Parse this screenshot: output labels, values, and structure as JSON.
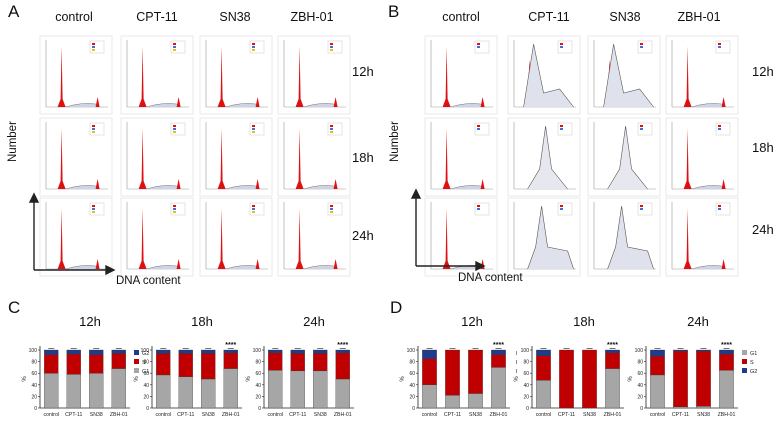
{
  "panels": {
    "A": {
      "label": "A"
    },
    "B": {
      "label": "B"
    },
    "C": {
      "label": "C"
    },
    "D": {
      "label": "D"
    }
  },
  "columns": [
    "control",
    "CPT-11",
    "SN38",
    "ZBH-01"
  ],
  "rows": [
    "12h",
    "18h",
    "24h"
  ],
  "axis": {
    "number": "Number",
    "dna": "DNA content"
  },
  "colors": {
    "g1": "#a6a6a6",
    "s": "#c00000",
    "g2": "#1f3b8a",
    "peak": "#dd1111"
  },
  "chart_data": [
    {
      "type": "bar",
      "stacked": true,
      "panel": "C",
      "title": "12h",
      "categories": [
        "control",
        "CPT-11",
        "SN38",
        "ZBH-01"
      ],
      "ylabel": "%",
      "ylim": [
        0,
        100
      ],
      "yticks": [
        "0",
        "20",
        "40",
        "60",
        "80",
        "100"
      ],
      "series": [
        {
          "name": "G1",
          "values": [
            60,
            58,
            60,
            68
          ]
        },
        {
          "name": "S",
          "values": [
            32,
            35,
            32,
            26
          ]
        },
        {
          "name": "G2",
          "values": [
            8,
            7,
            8,
            6
          ]
        }
      ],
      "legend": [
        "G2",
        "S",
        "G1"
      ],
      "annotation": ""
    },
    {
      "type": "bar",
      "stacked": true,
      "panel": "C",
      "title": "18h",
      "categories": [
        "control",
        "CPT-11",
        "SN38",
        "ZBH-01"
      ],
      "ylabel": "%",
      "ylim": [
        0,
        100
      ],
      "yticks": [
        "0",
        "20",
        "40",
        "60",
        "80",
        "100"
      ],
      "series": [
        {
          "name": "G1",
          "values": [
            57,
            54,
            50,
            68
          ]
        },
        {
          "name": "S",
          "values": [
            37,
            40,
            44,
            27
          ]
        },
        {
          "name": "G2",
          "values": [
            6,
            6,
            6,
            5
          ]
        }
      ],
      "legend": [],
      "annotation": "****"
    },
    {
      "type": "bar",
      "stacked": true,
      "panel": "C",
      "title": "24h",
      "categories": [
        "control",
        "CPT-11",
        "SN38",
        "ZBH-01"
      ],
      "ylabel": "%",
      "ylim": [
        0,
        100
      ],
      "yticks": [
        "0",
        "20",
        "40",
        "60",
        "80",
        "100"
      ],
      "series": [
        {
          "name": "G1",
          "values": [
            65,
            64,
            64,
            50
          ]
        },
        {
          "name": "S",
          "values": [
            30,
            30,
            30,
            45
          ]
        },
        {
          "name": "G2",
          "values": [
            5,
            6,
            6,
            5
          ]
        }
      ],
      "legend": [],
      "annotation": "****"
    },
    {
      "type": "bar",
      "stacked": true,
      "panel": "D",
      "title": "12h",
      "categories": [
        "control",
        "CPT-11",
        "SN38",
        "ZBH-01"
      ],
      "ylabel": "%",
      "ylim": [
        0,
        100
      ],
      "yticks": [
        "0",
        "20",
        "40",
        "60",
        "80",
        "100"
      ],
      "series": [
        {
          "name": "G1",
          "values": [
            40,
            22,
            25,
            70
          ]
        },
        {
          "name": "S",
          "values": [
            45,
            78,
            75,
            22
          ]
        },
        {
          "name": "G2",
          "values": [
            15,
            0,
            0,
            8
          ]
        }
      ],
      "legend": [
        "I",
        "I",
        "I"
      ],
      "annotation": "****"
    },
    {
      "type": "bar",
      "stacked": true,
      "panel": "D",
      "title": "18h",
      "categories": [
        "control",
        "CPT-11",
        "SN38",
        "ZBH-01"
      ],
      "ylabel": "%",
      "ylim": [
        0,
        100
      ],
      "yticks": [
        "0",
        "20",
        "40",
        "60",
        "80",
        "100"
      ],
      "series": [
        {
          "name": "G1",
          "values": [
            48,
            0,
            0,
            68
          ]
        },
        {
          "name": "S",
          "values": [
            42,
            100,
            100,
            27
          ]
        },
        {
          "name": "G2",
          "values": [
            10,
            0,
            0,
            5
          ]
        }
      ],
      "legend": [],
      "annotation": "****"
    },
    {
      "type": "bar",
      "stacked": true,
      "panel": "D",
      "title": "24h",
      "categories": [
        "control",
        "CPT-11",
        "SN38",
        "ZBH-01"
      ],
      "ylabel": "%",
      "ylim": [
        0,
        100
      ],
      "yticks": [
        "0",
        "20",
        "40",
        "60",
        "80",
        "100"
      ],
      "series": [
        {
          "name": "G1",
          "values": [
            57,
            2,
            3,
            65
          ]
        },
        {
          "name": "S",
          "values": [
            32,
            96,
            95,
            28
          ]
        },
        {
          "name": "G2",
          "values": [
            11,
            2,
            2,
            7
          ]
        }
      ],
      "legend": [
        "G1",
        "S",
        "G2"
      ],
      "annotation": "****"
    }
  ]
}
